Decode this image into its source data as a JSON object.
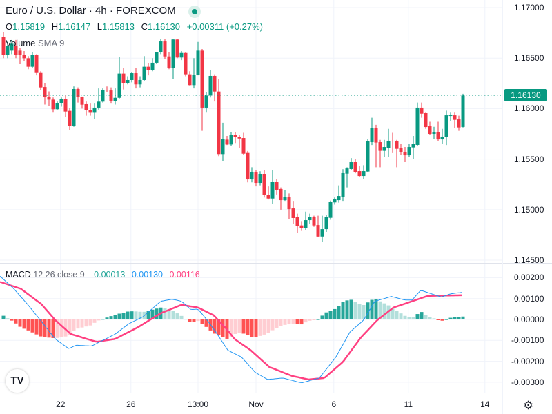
{
  "header": {
    "title": "Euro / U.S. Dollar · 4h · FOREXCOM",
    "ohlc": {
      "o_label": "O",
      "o": "1.15819",
      "h_label": "H",
      "h": "1.16147",
      "l_label": "L",
      "l": "1.15813",
      "c_label": "C",
      "c": "1.16130",
      "change": "+0.00311 (+0.27%)"
    },
    "volume_label": "Volume",
    "volume_params": "SMA 9",
    "current_price": "1.16130"
  },
  "macd_legend": {
    "name": "MACD",
    "params": "12 26 close 9",
    "hist": "0.00013",
    "macd": "0.00130",
    "signal": "0.00116"
  },
  "colors": {
    "up": "#089981",
    "down": "#F23645",
    "macd": "#2196F3",
    "signal": "#FF4081",
    "hist_up_strong": "#26A69A",
    "hist_up_weak": "#B2DFDB",
    "hist_down_strong": "#FF5252",
    "hist_down_weak": "#FFCDD2"
  },
  "icons": {
    "logo": "tradingview-logo",
    "settings": "gear-icon"
  },
  "logo_text": "TV",
  "chart_data": [
    {
      "type": "candlestick",
      "title": "Euro / U.S. Dollar · 4h · FOREXCOM",
      "ylim": [
        1.1445,
        1.1715
      ],
      "yticks": [
        "1.17000",
        "1.16500",
        "1.16000",
        "1.15500",
        "1.15000",
        "1.14500"
      ],
      "xticks": [
        {
          "label": "22",
          "index": 13.8
        },
        {
          "label": "26",
          "index": 30.8
        },
        {
          "label": "13:00",
          "index": 47
        },
        {
          "label": "Nov",
          "index": 61
        },
        {
          "label": "6",
          "index": 79.8
        },
        {
          "label": "11",
          "index": 97.8
        },
        {
          "label": "14",
          "index": 116.3
        }
      ],
      "ohlc_order": [
        "open",
        "high",
        "low",
        "close"
      ],
      "candles": [
        [
          1.16711,
          1.1676,
          1.165,
          1.16529
        ],
        [
          1.16529,
          1.1666,
          1.165,
          1.1662
        ],
        [
          1.16574,
          1.1668,
          1.1654,
          1.16643
        ],
        [
          1.1662,
          1.1668,
          1.165,
          1.16533
        ],
        [
          1.16574,
          1.166,
          1.1644,
          1.16533
        ],
        [
          1.16533,
          1.1657,
          1.1647,
          1.16499
        ],
        [
          1.16499,
          1.1652,
          1.1639,
          1.16415
        ],
        [
          1.16415,
          1.1656,
          1.164,
          1.16533
        ],
        [
          1.16533,
          1.1654,
          1.1633,
          1.16353
        ],
        [
          1.16353,
          1.1637,
          1.1618,
          1.1621
        ],
        [
          1.16214,
          1.1625,
          1.1604,
          1.16112
        ],
        [
          1.16112,
          1.1617,
          1.1603,
          1.16089
        ],
        [
          1.16089,
          1.1611,
          1.1596,
          1.15994
        ],
        [
          1.15994,
          1.1607,
          1.1599,
          1.16051
        ],
        [
          1.16051,
          1.1611,
          1.1602,
          1.16092
        ],
        [
          1.16092,
          1.1613,
          1.1592,
          1.15971
        ],
        [
          1.15978,
          1.1601,
          1.1579,
          1.15827
        ],
        [
          1.15827,
          1.1622,
          1.1582,
          1.16194
        ],
        [
          1.16194,
          1.1621,
          1.1606,
          1.16112
        ],
        [
          1.16112,
          1.1612,
          1.16,
          1.16039
        ],
        [
          1.16044,
          1.1607,
          1.1593,
          1.15987
        ],
        [
          1.15989,
          1.1605,
          1.1593,
          1.15959
        ],
        [
          1.15959,
          1.1605,
          1.159,
          1.1601
        ],
        [
          1.1601,
          1.162,
          1.1599,
          1.16069
        ],
        [
          1.16069,
          1.162,
          1.1606,
          1.16187
        ],
        [
          1.16187,
          1.1622,
          1.1616,
          1.1618
        ],
        [
          1.1618,
          1.1621,
          1.1605,
          1.16073
        ],
        [
          1.16073,
          1.162,
          1.1604,
          1.16107
        ],
        [
          1.16107,
          1.1651,
          1.161,
          1.16347
        ],
        [
          1.16347,
          1.164,
          1.1619,
          1.16251
        ],
        [
          1.16251,
          1.1632,
          1.1624,
          1.16283
        ],
        [
          1.16283,
          1.1636,
          1.1626,
          1.16351
        ],
        [
          1.16351,
          1.164,
          1.162,
          1.1624
        ],
        [
          1.1624,
          1.1632,
          1.1621,
          1.16283
        ],
        [
          1.16283,
          1.1652,
          1.1627,
          1.16415
        ],
        [
          1.16415,
          1.1645,
          1.1633,
          1.16381
        ],
        [
          1.16381,
          1.165,
          1.1637,
          1.16454
        ],
        [
          1.16454,
          1.1656,
          1.1644,
          1.16556
        ],
        [
          1.16556,
          1.1669,
          1.1654,
          1.16665
        ],
        [
          1.16665,
          1.1669,
          1.1649,
          1.16517
        ],
        [
          1.16517,
          1.1656,
          1.1639,
          1.16399
        ],
        [
          1.16399,
          1.1669,
          1.1629,
          1.16684
        ],
        [
          1.16684,
          1.1669,
          1.165,
          1.16506
        ],
        [
          1.16506,
          1.1657,
          1.1648,
          1.16551
        ],
        [
          1.16551,
          1.1656,
          1.1632,
          1.1634
        ],
        [
          1.1634,
          1.1637,
          1.1623,
          1.16233
        ],
        [
          1.16233,
          1.165,
          1.162,
          1.16335
        ],
        [
          1.16335,
          1.1666,
          1.1633,
          1.16574
        ],
        [
          1.16574,
          1.1659,
          1.1578,
          1.1601
        ],
        [
          1.1601,
          1.1616,
          1.1596,
          1.1613
        ],
        [
          1.1613,
          1.1638,
          1.1611,
          1.16324
        ],
        [
          1.16324,
          1.1634,
          1.1607,
          1.16169
        ],
        [
          1.16169,
          1.1629,
          1.1553,
          1.1555
        ],
        [
          1.1555,
          1.1586,
          1.1548,
          1.15698
        ],
        [
          1.15693,
          1.1573,
          1.1564,
          1.15645
        ],
        [
          1.15645,
          1.1577,
          1.1563,
          1.15743
        ],
        [
          1.15743,
          1.1577,
          1.1566,
          1.1572
        ],
        [
          1.1572,
          1.1574,
          1.1561,
          1.15704
        ],
        [
          1.15709,
          1.1576,
          1.1554,
          1.15554
        ],
        [
          1.15561,
          1.1558,
          1.1527,
          1.15299
        ],
        [
          1.15299,
          1.1542,
          1.1527,
          1.15374
        ],
        [
          1.15374,
          1.1539,
          1.1523,
          1.15265
        ],
        [
          1.15265,
          1.1538,
          1.1524,
          1.15354
        ],
        [
          1.15354,
          1.1539,
          1.1512,
          1.15144
        ],
        [
          1.15144,
          1.1523,
          1.151,
          1.1511
        ],
        [
          1.1511,
          1.1539,
          1.1506,
          1.15272
        ],
        [
          1.15272,
          1.153,
          1.1515,
          1.15197
        ],
        [
          1.15204,
          1.1522,
          1.15,
          1.15094
        ],
        [
          1.15094,
          1.1519,
          1.1508,
          1.15128
        ],
        [
          1.15128,
          1.1516,
          1.1491,
          1.15005
        ],
        [
          1.15012,
          1.1508,
          1.1486,
          1.14917
        ],
        [
          1.14924,
          1.1496,
          1.1477,
          1.14837
        ],
        [
          1.14844,
          1.1488,
          1.1479,
          1.14817
        ],
        [
          1.14817,
          1.1498,
          1.148,
          1.14896
        ],
        [
          1.14896,
          1.1496,
          1.1486,
          1.14924
        ],
        [
          1.14924,
          1.1494,
          1.1483,
          1.14844
        ],
        [
          1.14848,
          1.1494,
          1.1473,
          1.14734
        ],
        [
          1.14734,
          1.1494,
          1.1468,
          1.14807
        ],
        [
          1.14807,
          1.1495,
          1.1478,
          1.14924
        ],
        [
          1.14919,
          1.1509,
          1.149,
          1.15074
        ],
        [
          1.15072,
          1.1512,
          1.1505,
          1.15101
        ],
        [
          1.15094,
          1.1524,
          1.1507,
          1.15135
        ],
        [
          1.15128,
          1.154,
          1.1508,
          1.15361
        ],
        [
          1.15356,
          1.1542,
          1.1522,
          1.15408
        ],
        [
          1.15402,
          1.1551,
          1.1539,
          1.1547
        ],
        [
          1.1547,
          1.155,
          1.1536,
          1.15374
        ],
        [
          1.15381,
          1.1543,
          1.1532,
          1.15333
        ],
        [
          1.15333,
          1.1544,
          1.153,
          1.15381
        ],
        [
          1.15377,
          1.157,
          1.1537,
          1.15675
        ],
        [
          1.15668,
          1.1591,
          1.1564,
          1.15805
        ],
        [
          1.15805,
          1.1584,
          1.1542,
          1.15664
        ],
        [
          1.15668,
          1.1569,
          1.1542,
          1.15582
        ],
        [
          1.15582,
          1.1569,
          1.1552,
          1.1562
        ],
        [
          1.15613,
          1.158,
          1.1552,
          1.15682
        ],
        [
          1.15682,
          1.1576,
          1.1556,
          1.15679
        ],
        [
          1.15682,
          1.1569,
          1.1542,
          1.15602
        ],
        [
          1.15607,
          1.1565,
          1.1554,
          1.15566
        ],
        [
          1.15572,
          1.1562,
          1.1547,
          1.15538
        ],
        [
          1.15538,
          1.1565,
          1.1552,
          1.1562
        ],
        [
          1.15616,
          1.1573,
          1.155,
          1.15648
        ],
        [
          1.15641,
          1.1606,
          1.1563,
          1.1601
        ],
        [
          1.1601,
          1.1606,
          1.1591,
          1.1595
        ],
        [
          1.15955,
          1.1596,
          1.158,
          1.15818
        ],
        [
          1.15825,
          1.1587,
          1.1574,
          1.1575
        ],
        [
          1.1575,
          1.1582,
          1.157,
          1.15764
        ],
        [
          1.15764,
          1.1587,
          1.1568,
          1.15695
        ],
        [
          1.15695,
          1.158,
          1.1565,
          1.15723
        ],
        [
          1.15716,
          1.1598,
          1.1564,
          1.15934
        ],
        [
          1.1593,
          1.1596,
          1.1588,
          1.15934
        ],
        [
          1.15934,
          1.1596,
          1.1581,
          1.15889
        ],
        [
          1.15893,
          1.1593,
          1.1578,
          1.15814
        ],
        [
          1.15819,
          1.16147,
          1.15813,
          1.1613
        ]
      ],
      "last_price": 1.1613
    },
    {
      "type": "line",
      "title": "MACD 12 26 close 9",
      "ylim": [
        -0.0033,
        0.0023
      ],
      "yticks": [
        "0.00200",
        "0.00100",
        "0.00000",
        "-0.00100",
        "-0.00200",
        "-0.00300"
      ],
      "x_unit": "candle index",
      "series": [
        {
          "name": "MACD",
          "points": [
            [
              -0.8,
              0.00207
            ],
            [
              2.5,
              0.00147
            ],
            [
              5.8,
              0.00073
            ],
            [
              9.2,
              -0.0001
            ],
            [
              12.5,
              -0.00093
            ],
            [
              15.8,
              -0.0014
            ],
            [
              17.5,
              -0.00123
            ],
            [
              21.3,
              -0.00127
            ],
            [
              23.7,
              -0.00103
            ],
            [
              27,
              -0.0007
            ],
            [
              30.3,
              -0.0002
            ],
            [
              33.7,
              0.00013
            ],
            [
              38,
              0.00087
            ],
            [
              40.8,
              0.00097
            ],
            [
              43,
              0.00087
            ],
            [
              45.3,
              0.00047
            ],
            [
              47,
              0.0005
            ],
            [
              49.2,
              -3e-05
            ],
            [
              51.3,
              -0.0006
            ],
            [
              54.2,
              -0.00147
            ],
            [
              57.5,
              -0.0018
            ],
            [
              60.8,
              -0.00253
            ],
            [
              63.8,
              -0.00287
            ],
            [
              67.5,
              -0.0028
            ],
            [
              72,
              -0.00303
            ],
            [
              76.3,
              -0.0028
            ],
            [
              80.3,
              -0.0018
            ],
            [
              83.7,
              -0.0006
            ],
            [
              87,
              -3e-05
            ],
            [
              89.7,
              0.00087
            ],
            [
              93.7,
              0.0011
            ],
            [
              97,
              0.00093
            ],
            [
              98.7,
              0.00093
            ],
            [
              100.8,
              0.0014
            ],
            [
              105.8,
              0.00107
            ],
            [
              108,
              0.00123
            ],
            [
              110.8,
              0.0013
            ]
          ]
        },
        {
          "name": "Signal",
          "points": [
            [
              -0.8,
              0.0018
            ],
            [
              4.2,
              0.00147
            ],
            [
              9.2,
              0.00073
            ],
            [
              12.5,
              -3e-05
            ],
            [
              16.3,
              -0.0007
            ],
            [
              22.5,
              -0.00107
            ],
            [
              27,
              -0.00093
            ],
            [
              32.5,
              -0.00037
            ],
            [
              38,
              0.0003
            ],
            [
              43,
              0.0007
            ],
            [
              47,
              0.00057
            ],
            [
              50.8,
              0.0002
            ],
            [
              54.2,
              -0.00053
            ],
            [
              55.8,
              -0.00093
            ],
            [
              59.7,
              -0.00147
            ],
            [
              64.2,
              -0.00227
            ],
            [
              69.7,
              -0.0027
            ],
            [
              73.7,
              -0.00287
            ],
            [
              77.5,
              -0.0028
            ],
            [
              82,
              -0.00203
            ],
            [
              86.3,
              -0.00087
            ],
            [
              90.3,
              -3e-05
            ],
            [
              94.2,
              0.00057
            ],
            [
              98.7,
              0.00087
            ],
            [
              102.5,
              0.00113
            ],
            [
              110.8,
              0.00116
            ]
          ]
        }
      ],
      "histogram": "MACD minus Signal per candle"
    }
  ]
}
